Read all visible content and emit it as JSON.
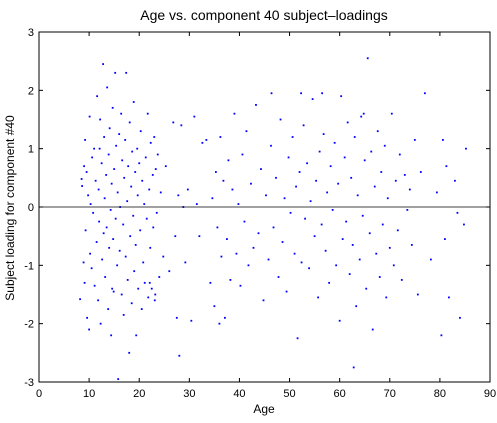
{
  "chart_data": {
    "type": "scatter",
    "title": "Age vs. component 40 subject–loadings",
    "xlabel": "Age",
    "ylabel": "Subject loading for component #40",
    "xlim": [
      0,
      90
    ],
    "ylim": [
      -3,
      3
    ],
    "xticks": [
      0,
      10,
      20,
      30,
      40,
      50,
      60,
      70,
      80,
      90
    ],
    "yticks": [
      -3,
      -2,
      -1,
      0,
      1,
      2,
      3
    ],
    "reference_line_y": 0,
    "grid": false,
    "colors": {
      "points": "#0000ff",
      "reference_line": "#000000",
      "axes": "#000000",
      "background": "#ffffff"
    },
    "points": [
      [
        8.2,
        -1.58
      ],
      [
        8.5,
        0.48
      ],
      [
        8.6,
        0.36
      ],
      [
        8.9,
        -0.95
      ],
      [
        9.0,
        0.7
      ],
      [
        9.1,
        -1.3
      ],
      [
        9.2,
        1.15
      ],
      [
        9.3,
        -0.4
      ],
      [
        9.5,
        0.6
      ],
      [
        9.6,
        -1.9
      ],
      [
        9.8,
        0.2
      ],
      [
        10.0,
        -2.1
      ],
      [
        10.1,
        1.55
      ],
      [
        10.2,
        -0.8
      ],
      [
        10.3,
        0.05
      ],
      [
        10.5,
        -1.05
      ],
      [
        10.6,
        0.85
      ],
      [
        10.8,
        -0.1
      ],
      [
        11.0,
        1.0
      ],
      [
        11.1,
        -1.35
      ],
      [
        11.3,
        0.45
      ],
      [
        11.5,
        -0.6
      ],
      [
        11.6,
        1.9
      ],
      [
        11.8,
        -1.6
      ],
      [
        11.9,
        0.3
      ],
      [
        12.0,
        -0.25
      ],
      [
        12.2,
        1.5
      ],
      [
        12.3,
        -2.0
      ],
      [
        12.5,
        0.75
      ],
      [
        12.6,
        -0.9
      ],
      [
        12.8,
        2.45
      ],
      [
        12.9,
        -0.45
      ],
      [
        13.0,
        1.2
      ],
      [
        13.1,
        0.15
      ],
      [
        13.2,
        -1.2
      ],
      [
        13.4,
        0.55
      ],
      [
        13.5,
        -0.35
      ],
      [
        13.6,
        2.05
      ],
      [
        13.8,
        -1.75
      ],
      [
        13.9,
        0.9
      ],
      [
        14.0,
        -0.7
      ],
      [
        14.1,
        1.35
      ],
      [
        14.3,
        -0.05
      ],
      [
        14.4,
        -2.2
      ],
      [
        14.5,
        0.4
      ],
      [
        14.7,
        1.7
      ],
      [
        14.8,
        -0.55
      ],
      [
        14.9,
        -1.45
      ],
      [
        15.0,
        0.65
      ],
      [
        15.2,
        2.3
      ],
      [
        15.3,
        -0.2
      ],
      [
        15.4,
        1.05
      ],
      [
        15.6,
        -1.0
      ],
      [
        15.7,
        0.25
      ],
      [
        15.8,
        -2.95
      ],
      [
        16.0,
        1.25
      ],
      [
        16.1,
        -0.75
      ],
      [
        16.2,
        0.0
      ],
      [
        16.4,
        1.6
      ],
      [
        16.5,
        -1.5
      ],
      [
        16.6,
        0.8
      ],
      [
        16.8,
        -0.3
      ],
      [
        16.9,
        -1.85
      ],
      [
        17.0,
        0.5
      ],
      [
        17.2,
        1.15
      ],
      [
        17.3,
        -0.85
      ],
      [
        17.4,
        2.3
      ],
      [
        17.6,
        0.1
      ],
      [
        17.7,
        -1.25
      ],
      [
        17.8,
        0.7
      ],
      [
        18.0,
        -2.5
      ],
      [
        18.1,
        1.45
      ],
      [
        18.2,
        -0.5
      ],
      [
        18.4,
        0.35
      ],
      [
        18.5,
        -1.65
      ],
      [
        18.6,
        0.95
      ],
      [
        18.8,
        -0.15
      ],
      [
        18.9,
        1.8
      ],
      [
        19.0,
        -1.1
      ],
      [
        19.2,
        0.6
      ],
      [
        19.3,
        -0.65
      ],
      [
        19.4,
        -2.2
      ],
      [
        19.6,
        1.0
      ],
      [
        19.7,
        0.2
      ],
      [
        19.8,
        -1.4
      ],
      [
        20.0,
        0.75
      ],
      [
        20.2,
        -0.4
      ],
      [
        20.3,
        1.3
      ],
      [
        20.5,
        -1.75
      ],
      [
        20.6,
        0.45
      ],
      [
        20.8,
        -0.95
      ],
      [
        21.0,
        0.05
      ],
      [
        21.1,
        -1.3
      ],
      [
        21.3,
        0.85
      ],
      [
        21.5,
        -0.2
      ],
      [
        21.7,
        1.6
      ],
      [
        21.8,
        -1.55
      ],
      [
        22.0,
        0.3
      ],
      [
        22.2,
        -0.7
      ],
      [
        22.3,
        1.1
      ],
      [
        22.5,
        -1.4
      ],
      [
        22.7,
        0.55
      ],
      [
        22.8,
        -0.35
      ],
      [
        23.0,
        1.2
      ],
      [
        23.1,
        -1.6
      ],
      [
        23.3,
        0.65
      ],
      [
        23.5,
        -0.1
      ],
      [
        23.7,
        0.9
      ],
      [
        24.0,
        -1.2
      ],
      [
        24.3,
        0.25
      ],
      [
        24.8,
        -0.85
      ],
      [
        25.3,
        0.7
      ],
      [
        26.0,
        -1.1
      ],
      [
        26.8,
        1.45
      ],
      [
        27.2,
        -0.5
      ],
      [
        27.5,
        -1.9
      ],
      [
        27.8,
        0.2
      ],
      [
        28.0,
        -2.55
      ],
      [
        28.4,
        1.4
      ],
      [
        28.8,
        0.0
      ],
      [
        29.2,
        -0.95
      ],
      [
        29.7,
        0.3
      ],
      [
        30.4,
        -1.95
      ],
      [
        31.0,
        1.55
      ],
      [
        31.5,
        0.05
      ],
      [
        32.0,
        -0.5
      ],
      [
        32.6,
        1.1
      ],
      [
        33.4,
        1.15
      ],
      [
        34.2,
        -1.3
      ],
      [
        34.6,
        0.15
      ],
      [
        35.0,
        -1.7
      ],
      [
        35.3,
        0.6
      ],
      [
        35.6,
        -0.35
      ],
      [
        36.0,
        -2.0
      ],
      [
        36.2,
        1.2
      ],
      [
        36.4,
        -0.85
      ],
      [
        36.8,
        0.45
      ],
      [
        37.1,
        -1.9
      ],
      [
        37.5,
        -0.55
      ],
      [
        37.8,
        0.8
      ],
      [
        38.2,
        -1.25
      ],
      [
        38.6,
        0.3
      ],
      [
        39.0,
        1.6
      ],
      [
        39.4,
        -0.8
      ],
      [
        39.8,
        0.05
      ],
      [
        40.2,
        -1.35
      ],
      [
        40.6,
        0.9
      ],
      [
        41.0,
        -0.25
      ],
      [
        41.4,
        1.3
      ],
      [
        41.8,
        -1.0
      ],
      [
        42.3,
        0.4
      ],
      [
        42.8,
        -0.7
      ],
      [
        43.3,
        1.75
      ],
      [
        43.8,
        -0.45
      ],
      [
        44.3,
        0.65
      ],
      [
        44.8,
        -1.6
      ],
      [
        45.3,
        0.2
      ],
      [
        45.8,
        -0.9
      ],
      [
        46.3,
        1.05
      ],
      [
        46.8,
        -0.35
      ],
      [
        47.3,
        0.5
      ],
      [
        47.8,
        -1.2
      ],
      [
        48.2,
        1.5
      ],
      [
        48.6,
        -0.6
      ],
      [
        49.0,
        0.15
      ],
      [
        49.4,
        -1.45
      ],
      [
        49.8,
        0.85
      ],
      [
        50.2,
        -0.1
      ],
      [
        50.6,
        1.2
      ],
      [
        51.0,
        -0.8
      ],
      [
        51.3,
        0.35
      ],
      [
        51.6,
        -2.25
      ],
      [
        52.0,
        0.6
      ],
      [
        52.4,
        -0.95
      ],
      [
        52.8,
        1.4
      ],
      [
        53.1,
        -0.2
      ],
      [
        53.5,
        0.75
      ],
      [
        53.9,
        -1.05
      ],
      [
        54.2,
        0.1
      ],
      [
        54.6,
        1.85
      ],
      [
        55.0,
        -0.5
      ],
      [
        55.3,
        0.45
      ],
      [
        55.7,
        -1.55
      ],
      [
        56.0,
        0.95
      ],
      [
        56.4,
        -0.3
      ],
      [
        56.8,
        1.25
      ],
      [
        57.2,
        -0.75
      ],
      [
        57.5,
        0.25
      ],
      [
        57.9,
        -1.3
      ],
      [
        58.2,
        0.7
      ],
      [
        58.6,
        -0.05
      ],
      [
        59.0,
        1.1
      ],
      [
        59.3,
        -1.0
      ],
      [
        59.7,
        0.4
      ],
      [
        60.0,
        -1.95
      ],
      [
        60.3,
        1.9
      ],
      [
        60.6,
        -0.55
      ],
      [
        61.0,
        0.85
      ],
      [
        61.3,
        -0.25
      ],
      [
        61.6,
        1.45
      ],
      [
        62.0,
        -1.15
      ],
      [
        62.3,
        0.5
      ],
      [
        62.6,
        -0.65
      ],
      [
        63.0,
        1.2
      ],
      [
        63.3,
        -1.7
      ],
      [
        63.6,
        0.2
      ],
      [
        64.0,
        -0.9
      ],
      [
        64.3,
        1.55
      ],
      [
        64.6,
        -0.15
      ],
      [
        65.0,
        0.8
      ],
      [
        65.3,
        -1.4
      ],
      [
        65.6,
        2.55
      ],
      [
        66.0,
        -0.45
      ],
      [
        66.3,
        0.95
      ],
      [
        66.6,
        -2.1
      ],
      [
        67.0,
        0.35
      ],
      [
        67.3,
        -0.8
      ],
      [
        67.6,
        1.3
      ],
      [
        68.0,
        -1.2
      ],
      [
        68.3,
        0.6
      ],
      [
        68.6,
        -0.3
      ],
      [
        69.0,
        1.05
      ],
      [
        69.3,
        -1.55
      ],
      [
        69.6,
        0.15
      ],
      [
        70.0,
        -0.7
      ],
      [
        70.4,
        1.6
      ],
      [
        70.8,
        -1.0
      ],
      [
        71.2,
        0.45
      ],
      [
        71.6,
        -0.4
      ],
      [
        72.0,
        0.9
      ],
      [
        72.4,
        -1.25
      ],
      [
        73.0,
        0.55
      ],
      [
        73.5,
        -0.05
      ],
      [
        74.0,
        0.3
      ],
      [
        74.4,
        -0.65
      ],
      [
        75.0,
        1.15
      ],
      [
        75.6,
        -1.5
      ],
      [
        76.2,
        0.6
      ],
      [
        77.0,
        1.95
      ],
      [
        78.2,
        -0.9
      ],
      [
        79.4,
        0.25
      ],
      [
        80.3,
        -2.2
      ],
      [
        80.6,
        1.15
      ],
      [
        81.0,
        -0.55
      ],
      [
        81.3,
        0.7
      ],
      [
        81.8,
        -1.55
      ],
      [
        83.0,
        0.45
      ],
      [
        83.5,
        -0.1
      ],
      [
        84.0,
        -1.9
      ],
      [
        84.8,
        -0.3
      ],
      [
        85.2,
        1.0
      ],
      [
        52.3,
        1.95
      ],
      [
        56.5,
        1.95
      ],
      [
        62.8,
        -2.75
      ],
      [
        46.4,
        1.95
      ],
      [
        64.8,
        1.6
      ],
      [
        14.6,
        -1.4
      ],
      [
        22.1,
        -1.3
      ],
      [
        23.2,
        -1.5
      ],
      [
        12.1,
        1.0
      ]
    ]
  }
}
